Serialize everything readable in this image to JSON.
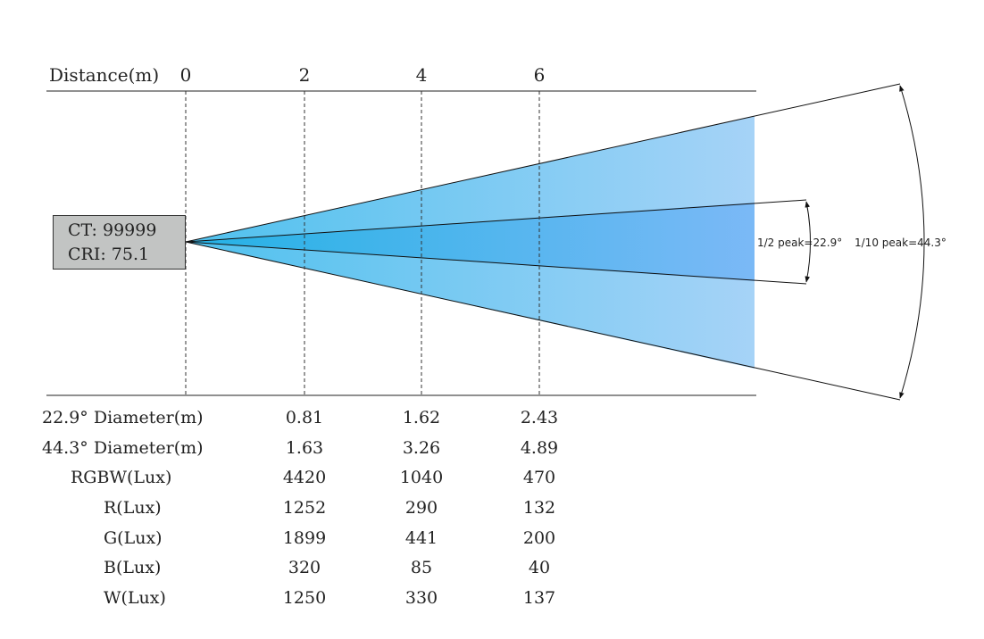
{
  "header": {
    "distance_label": "Distance(m)",
    "ticks": [
      "0",
      "2",
      "4",
      "6"
    ]
  },
  "fixture": {
    "ct": "CT: 99999",
    "cri": "CRI: 75.1"
  },
  "beam": {
    "half_peak_label": "1/2 peak=22.9°",
    "tenth_peak_label": "1/10 peak=44.3°",
    "colors": {
      "inner": "#29b0e6",
      "outer": "#a6d3f7"
    }
  },
  "table": {
    "rows": [
      {
        "label": "22.9° Diameter(m)",
        "values": [
          "0.81",
          "1.62",
          "2.43"
        ]
      },
      {
        "label": "44.3° Diameter(m)",
        "values": [
          "1.63",
          "3.26",
          "4.89"
        ]
      },
      {
        "label": "RGBW(Lux)",
        "values": [
          "4420",
          "1040",
          "470"
        ]
      },
      {
        "label": "R(Lux)",
        "values": [
          "1252",
          "290",
          "132"
        ]
      },
      {
        "label": "G(Lux)",
        "values": [
          "1899",
          "441",
          "200"
        ]
      },
      {
        "label": "B(Lux)",
        "values": [
          "320",
          "85",
          "40"
        ]
      },
      {
        "label": "W(Lux)",
        "values": [
          "1250",
          "330",
          "137"
        ]
      }
    ]
  }
}
